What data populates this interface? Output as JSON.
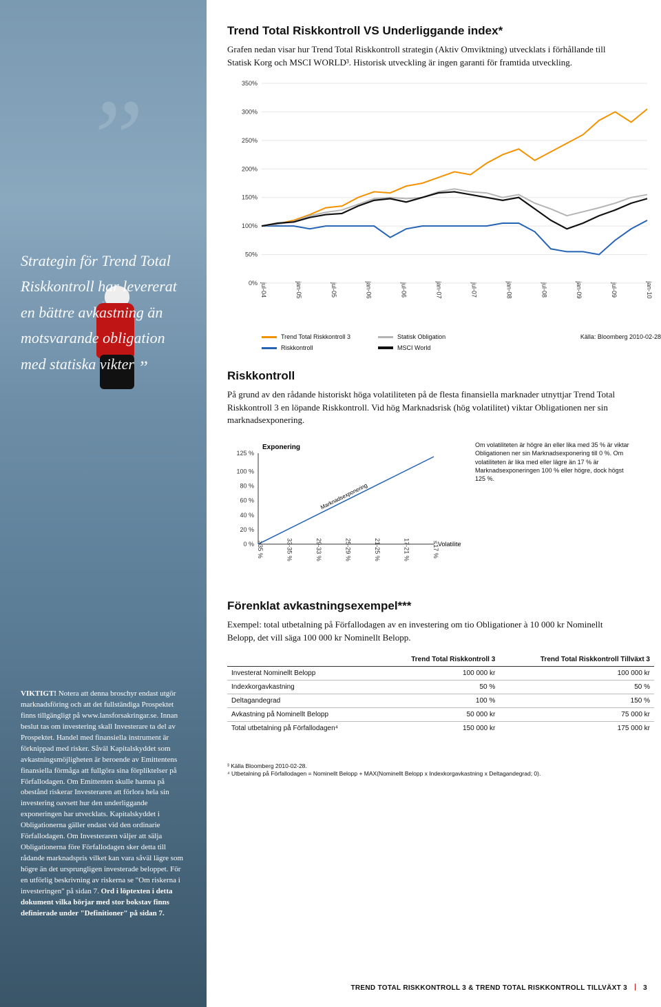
{
  "pullquote": "Strategin för Trend Total Risk­kontroll har levererat en bättre avkastning än motsvarande obligation med statiska vikter",
  "viktigt_label": "VIKTIGT!",
  "viktigt_body": " Notera att denna broschyr endast utgör marknadsföring och att det fullständiga Prospektet finns tillgängligt på www.lansforsakringar.se. Innan beslut tas om investering skall Investerare ta del av Prospektet. Handel med finansiella instrument är förknippad med risker. Såväl Kapitalskyddet som avkastningsmöjligheten är beroende av Emittentens finansiella förmåga att fullgöra sina förpliktelser på Förfallodagen. Om Emittenten skulle hamna på obestånd riskerar Investeraren att förlora hela sin investering oavsett hur den underliggande exponeringen har utvecklats. Kapitalskyddet i Obligationerna gäller endast vid den ordinarie Förfallodagen. Om Investeraren väljer att sälja Obligationerna före Förfallodagen sker detta till rådande marknadspris vilket kan vara såväl lägre som högre än det ursprungligen investerade beloppet. För en utförlig beskrivning av riskerna se \"Om riskerna i investeringen\" på sidan 7. ",
  "viktigt_bold_tail": "Ord i löptexten i detta dokument vilka börjar med stor bokstav finns definierade under \"Definitioner\" på sidan 7.",
  "section1_title": "Trend Total Riskkontroll VS Underliggande index*",
  "section1_body": "Grafen nedan visar hur Trend Total Riskkontroll strategin (Aktiv Omviktning) utvecklats i förhållande till Statisk Korg och MSCI WORLD³. Historisk utveckling är ingen garanti för framtida utveckling.",
  "chart1": {
    "type": "line",
    "ylabels": [
      "350%",
      "300%",
      "250%",
      "200%",
      "150%",
      "100%",
      "50%",
      "0%"
    ],
    "ylim": [
      0,
      350
    ],
    "yticks": [
      0,
      50,
      100,
      150,
      200,
      250,
      300,
      350
    ],
    "xlabels": [
      "jul-04",
      "jan-05",
      "jul-05",
      "jan-06",
      "jul-06",
      "jan-07",
      "jul-07",
      "jan-08",
      "jul-08",
      "jan-09",
      "jul-09",
      "jan-10"
    ],
    "grid_color": "#e5e5e5",
    "series": [
      {
        "name": "Trend Total Riskkontroll 3",
        "color": "#f39200",
        "y": [
          100,
          104,
          110,
          120,
          132,
          135,
          150,
          160,
          158,
          170,
          175,
          185,
          195,
          190,
          210,
          225,
          235,
          215,
          230,
          245,
          260,
          285,
          300,
          282,
          305
        ]
      },
      {
        "name": "Riskkontroll",
        "color": "#2563b5",
        "y": [
          100,
          100,
          100,
          95,
          100,
          100,
          100,
          100,
          80,
          95,
          100,
          100,
          100,
          100,
          100,
          105,
          105,
          90,
          60,
          55,
          55,
          50,
          75,
          95,
          110
        ]
      },
      {
        "name": "Statisk Obligation",
        "color": "#b5b5b5",
        "y": [
          100,
          103,
          108,
          118,
          124,
          128,
          138,
          148,
          150,
          148,
          150,
          160,
          165,
          160,
          158,
          150,
          155,
          140,
          130,
          118,
          125,
          132,
          140,
          150,
          155
        ]
      },
      {
        "name": "MSCI World",
        "color": "#111111",
        "y": [
          100,
          105,
          107,
          115,
          120,
          122,
          135,
          145,
          148,
          142,
          150,
          158,
          160,
          155,
          150,
          145,
          150,
          130,
          110,
          95,
          105,
          118,
          128,
          140,
          148
        ]
      }
    ],
    "legend": [
      {
        "label": "Trend Total Riskkontroll 3",
        "color": "#f39200"
      },
      {
        "label": "Statisk Obligation",
        "color": "#b5b5b5"
      },
      {
        "label": "Riskkontroll",
        "color": "#2563b5"
      },
      {
        "label": "MSCI World",
        "color": "#111111"
      }
    ],
    "source": "Källa: Bloomberg 2010-02-28"
  },
  "section2_title": "Riskkontroll",
  "section2_body": "På grund av den rådande historiskt höga volatiliteten på de flesta finansiella marknader utnyttjar Trend Total Riskkontroll 3 en löpande Riskkontroll. Vid hög Marknadsrisk (hög volatilitet) viktar Obligationen ner sin marknadsexponering.",
  "chart2": {
    "type": "line",
    "title": "Exponering",
    "yticks": [
      "125 %",
      "100 %",
      "80 %",
      "60 %",
      "40 %",
      "20 %",
      "0 %"
    ],
    "xticks": [
      "≥35 %",
      "33-35 %",
      "29-33 %",
      "25-29 %",
      "21-25 %",
      "17-21 %",
      "≤17 %"
    ],
    "xaxis_label": "Volatilitet",
    "diag_label": "Marknadsexponering",
    "line_color": "#2563b5",
    "note": "Om volatiliteten är högre än eller lika med 35 % är viktar Obligationen ner sin Marknadsexponering till 0 %. Om volatiliteten är lika med eller lägre än 17 % är Marknadsexponeringen 100 % eller högre, dock högst 125 %."
  },
  "section3_title": "Förenklat avkastningsexempel***",
  "section3_body": "Exempel: total utbetalning på Förfallodagen av en investering om tio Obligationer à 10 000 kr Nominellt Belopp, det vill säga 100 000 kr Nominellt Belopp.",
  "table": {
    "headers": [
      "",
      "Trend Total Riskkontroll 3",
      "Trend Total Riskkontroll Tillväxt 3"
    ],
    "rows": [
      [
        "Investerat Nominellt Belopp",
        "100 000 kr",
        "100 000 kr"
      ],
      [
        "Indexkorgavkastning",
        "50 %",
        "50 %"
      ],
      [
        "Deltagandegrad",
        "100 %",
        "150 %"
      ],
      [
        "Avkastning på Nominellt Belopp",
        "50 000 kr",
        "75 000 kr"
      ],
      [
        "Total utbetalning på Förfallodagen⁴",
        "150 000 kr",
        "175 000 kr"
      ]
    ]
  },
  "footnotes": [
    "³ Källa Bloomberg 2010-02-28.",
    "⁴ Utbetalning på Förfallodagen = Nominellt Belopp + MAX(Nominellt Belopp x Indexkorgavkastning x Deltagandegrad; 0)."
  ],
  "pagefoot_title": "TREND TOTAL RISKKONTROLL 3 & TREND TOTAL RISKKONTROLL TILLVÄXT 3",
  "pagefoot_num": "3"
}
